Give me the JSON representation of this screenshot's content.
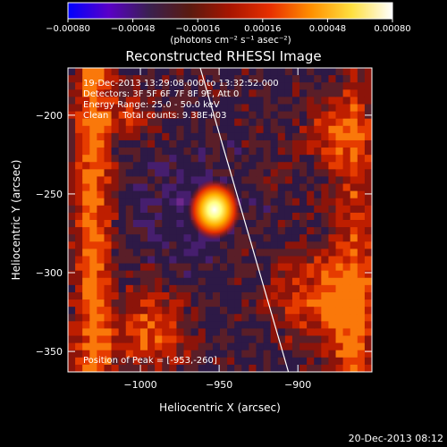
{
  "chart_data": {
    "type": "heatmap",
    "title": "Reconstructed RHESSI Image",
    "xlabel": "Heliocentric X (arcsec)",
    "ylabel": "Heliocentric Y (arcsec)",
    "xlim": [
      -1046,
      -853
    ],
    "ylim": [
      -363,
      -170
    ],
    "x_ticks": [
      {
        "value": -1000,
        "label": "−1000"
      },
      {
        "value": -950,
        "label": "−950"
      },
      {
        "value": -900,
        "label": "−900"
      }
    ],
    "y_ticks": [
      {
        "value": -200,
        "label": "−200"
      },
      {
        "value": -250,
        "label": "−250"
      },
      {
        "value": -300,
        "label": "−300"
      },
      {
        "value": -350,
        "label": "−350"
      }
    ],
    "colorbar": {
      "range": [
        -0.0008,
        0.0008
      ],
      "ticks": [
        {
          "value": -0.0008,
          "label": "−0.00080"
        },
        {
          "value": -0.00048,
          "label": "−0.00048"
        },
        {
          "value": -0.00016,
          "label": "−0.00016"
        },
        {
          "value": 0.00016,
          "label": "0.00016"
        },
        {
          "value": 0.00048,
          "label": "0.00048"
        },
        {
          "value": 0.0008,
          "label": "0.00080"
        }
      ],
      "unit_label": "(photons cm⁻² s⁻¹ asec⁻²)",
      "colors": [
        "#0000ff",
        "#5a00c8",
        "#3a2050",
        "#5a1a10",
        "#a81500",
        "#e83000",
        "#ff9000",
        "#ffe040",
        "#ffffff"
      ]
    },
    "annotations": [
      "19-Dec-2013 13:29:08.000 to 13:32:52.000",
      "Detectors: 3F 5F 6F 7F 8F 9F, Att 0",
      "Energy Range: 25.0 - 50.0 keV",
      "Clean     Total counts: 9.38E+03"
    ],
    "peak_label": "Position of Peak = [-953,-260]",
    "peak": {
      "x": -953,
      "y": -260
    },
    "limb_line": [
      {
        "x": -962,
        "y": -170
      },
      {
        "x": -906,
        "y": -363
      }
    ],
    "grid": false
  },
  "footer": {
    "timestamp": "20-Dec-2013 08:12"
  }
}
